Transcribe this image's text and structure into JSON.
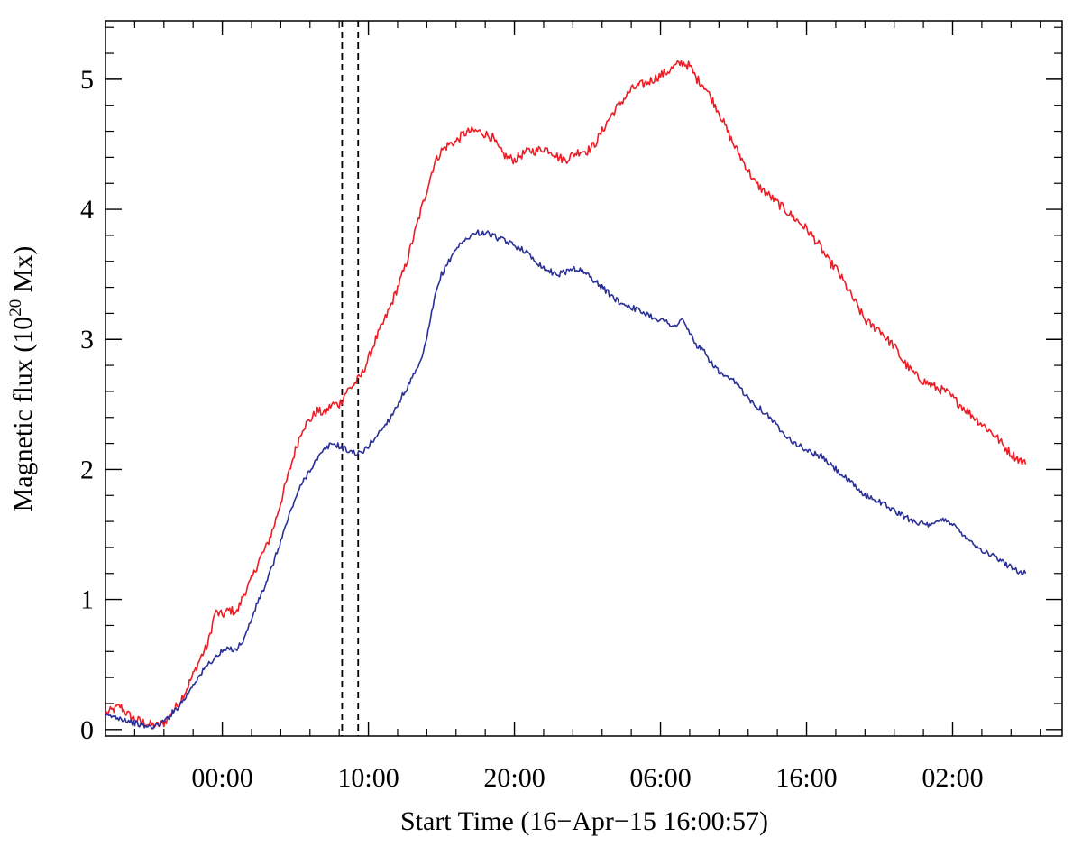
{
  "chart_data": {
    "type": "line",
    "xlabel": "Start Time (16−Apr−15 16:00:57)",
    "ylabel": {
      "prefix": "Magnetic flux (10",
      "exponent": "20",
      "suffix": " Mx)"
    },
    "x_unit": "hours after start time",
    "xlim": [
      0,
      65.5
    ],
    "ylim": [
      -0.05,
      5.45
    ],
    "x_ticks": [
      {
        "x": 8,
        "label": "00:00"
      },
      {
        "x": 18,
        "label": "10:00"
      },
      {
        "x": 28,
        "label": "20:00"
      },
      {
        "x": 38,
        "label": "06:00"
      },
      {
        "x": 48,
        "label": "16:00"
      },
      {
        "x": 58,
        "label": "02:00"
      }
    ],
    "x_minor_step": 2,
    "y_ticks": [
      {
        "y": 0,
        "label": "0"
      },
      {
        "y": 1,
        "label": "1"
      },
      {
        "y": 2,
        "label": "2"
      },
      {
        "y": 3,
        "label": "3"
      },
      {
        "y": 4,
        "label": "4"
      },
      {
        "y": 5,
        "label": "5"
      }
    ],
    "y_minor_step": 0.2,
    "vlines": [
      {
        "x": 16.2,
        "style": "dashed",
        "color": "#000000"
      },
      {
        "x": 17.3,
        "style": "dashed",
        "color": "#000000"
      }
    ],
    "grid": false,
    "series": [
      {
        "color": "#ee1c25",
        "points": [
          [
            0,
            0.12
          ],
          [
            0.5,
            0.15
          ],
          [
            1,
            0.18
          ],
          [
            1.5,
            0.12
          ],
          [
            2,
            0.08
          ],
          [
            2.5,
            0.06
          ],
          [
            3,
            0.04
          ],
          [
            3.5,
            0.03
          ],
          [
            4,
            0.05
          ],
          [
            4.5,
            0.12
          ],
          [
            5,
            0.2
          ],
          [
            5.5,
            0.3
          ],
          [
            6,
            0.42
          ],
          [
            6.5,
            0.55
          ],
          [
            7,
            0.65
          ],
          [
            7.5,
            0.9
          ],
          [
            8,
            0.88
          ],
          [
            8.5,
            0.92
          ],
          [
            9,
            0.9
          ],
          [
            9.5,
            1.05
          ],
          [
            10,
            1.15
          ],
          [
            10.5,
            1.3
          ],
          [
            11,
            1.4
          ],
          [
            11.5,
            1.55
          ],
          [
            12,
            1.75
          ],
          [
            12.5,
            1.95
          ],
          [
            13,
            2.15
          ],
          [
            13.5,
            2.32
          ],
          [
            14,
            2.38
          ],
          [
            14.5,
            2.45
          ],
          [
            15,
            2.43
          ],
          [
            15.5,
            2.5
          ],
          [
            16,
            2.5
          ],
          [
            16.5,
            2.6
          ],
          [
            17,
            2.65
          ],
          [
            17.5,
            2.72
          ],
          [
            18,
            2.85
          ],
          [
            18.5,
            3.0
          ],
          [
            19,
            3.12
          ],
          [
            19.5,
            3.25
          ],
          [
            20,
            3.4
          ],
          [
            20.5,
            3.55
          ],
          [
            21,
            3.75
          ],
          [
            21.5,
            3.95
          ],
          [
            22,
            4.15
          ],
          [
            22.5,
            4.35
          ],
          [
            23,
            4.45
          ],
          [
            23.5,
            4.5
          ],
          [
            24,
            4.52
          ],
          [
            24.5,
            4.58
          ],
          [
            25,
            4.6
          ],
          [
            25.5,
            4.6
          ],
          [
            26,
            4.58
          ],
          [
            26.5,
            4.55
          ],
          [
            27,
            4.45
          ],
          [
            27.5,
            4.4
          ],
          [
            28,
            4.38
          ],
          [
            28.5,
            4.42
          ],
          [
            29,
            4.45
          ],
          [
            29.5,
            4.45
          ],
          [
            30,
            4.47
          ],
          [
            30.5,
            4.45
          ],
          [
            31,
            4.4
          ],
          [
            31.5,
            4.38
          ],
          [
            32,
            4.42
          ],
          [
            32.5,
            4.45
          ],
          [
            33,
            4.45
          ],
          [
            33.5,
            4.5
          ],
          [
            34,
            4.6
          ],
          [
            34.5,
            4.7
          ],
          [
            35,
            4.78
          ],
          [
            35.5,
            4.85
          ],
          [
            36,
            4.92
          ],
          [
            36.5,
            4.95
          ],
          [
            37,
            4.97
          ],
          [
            37.5,
            5.0
          ],
          [
            38,
            5.03
          ],
          [
            38.5,
            5.06
          ],
          [
            39,
            5.1
          ],
          [
            39.5,
            5.13
          ],
          [
            40,
            5.1
          ],
          [
            40.5,
            5.0
          ],
          [
            41,
            4.95
          ],
          [
            41.5,
            4.85
          ],
          [
            42,
            4.75
          ],
          [
            42.5,
            4.62
          ],
          [
            43,
            4.5
          ],
          [
            43.5,
            4.4
          ],
          [
            44,
            4.3
          ],
          [
            44.5,
            4.2
          ],
          [
            45,
            4.15
          ],
          [
            45.5,
            4.1
          ],
          [
            46,
            4.05
          ],
          [
            46.5,
            4.0
          ],
          [
            47,
            3.95
          ],
          [
            47.5,
            3.9
          ],
          [
            48,
            3.85
          ],
          [
            48.5,
            3.78
          ],
          [
            49,
            3.7
          ],
          [
            49.5,
            3.6
          ],
          [
            50,
            3.55
          ],
          [
            50.5,
            3.45
          ],
          [
            51,
            3.35
          ],
          [
            51.5,
            3.25
          ],
          [
            52,
            3.15
          ],
          [
            52.5,
            3.1
          ],
          [
            53,
            3.08
          ],
          [
            53.5,
            3.0
          ],
          [
            54,
            2.95
          ],
          [
            54.5,
            2.85
          ],
          [
            55,
            2.78
          ],
          [
            55.5,
            2.72
          ],
          [
            56,
            2.68
          ],
          [
            56.5,
            2.65
          ],
          [
            57,
            2.62
          ],
          [
            57.5,
            2.6
          ],
          [
            58,
            2.55
          ],
          [
            58.5,
            2.5
          ],
          [
            59,
            2.45
          ],
          [
            59.5,
            2.4
          ],
          [
            60,
            2.35
          ],
          [
            60.5,
            2.3
          ],
          [
            61,
            2.25
          ],
          [
            61.5,
            2.18
          ],
          [
            62,
            2.12
          ],
          [
            62.5,
            2.08
          ],
          [
            63,
            2.04
          ]
        ]
      },
      {
        "color": "#2b3097",
        "points": [
          [
            0,
            0.1
          ],
          [
            0.5,
            0.1
          ],
          [
            1,
            0.09
          ],
          [
            1.5,
            0.07
          ],
          [
            2,
            0.05
          ],
          [
            2.5,
            0.03
          ],
          [
            3,
            0.02
          ],
          [
            3.5,
            0.03
          ],
          [
            4,
            0.06
          ],
          [
            4.5,
            0.12
          ],
          [
            5,
            0.18
          ],
          [
            5.5,
            0.25
          ],
          [
            6,
            0.35
          ],
          [
            6.5,
            0.42
          ],
          [
            7,
            0.5
          ],
          [
            7.5,
            0.55
          ],
          [
            8,
            0.6
          ],
          [
            8.5,
            0.62
          ],
          [
            9,
            0.62
          ],
          [
            9.5,
            0.7
          ],
          [
            10,
            0.85
          ],
          [
            10.5,
            1.0
          ],
          [
            11,
            1.12
          ],
          [
            11.5,
            1.28
          ],
          [
            12,
            1.45
          ],
          [
            12.5,
            1.62
          ],
          [
            13,
            1.78
          ],
          [
            13.5,
            1.9
          ],
          [
            14,
            2.0
          ],
          [
            14.5,
            2.08
          ],
          [
            15,
            2.15
          ],
          [
            15.5,
            2.2
          ],
          [
            16,
            2.18
          ],
          [
            16.5,
            2.15
          ],
          [
            17,
            2.13
          ],
          [
            17.5,
            2.12
          ],
          [
            18,
            2.18
          ],
          [
            18.5,
            2.25
          ],
          [
            19,
            2.32
          ],
          [
            19.5,
            2.4
          ],
          [
            20,
            2.5
          ],
          [
            20.5,
            2.6
          ],
          [
            21,
            2.7
          ],
          [
            21.5,
            2.8
          ],
          [
            22,
            3.0
          ],
          [
            22.5,
            3.3
          ],
          [
            23,
            3.5
          ],
          [
            23.5,
            3.6
          ],
          [
            24,
            3.7
          ],
          [
            24.5,
            3.75
          ],
          [
            25,
            3.8
          ],
          [
            25.5,
            3.82
          ],
          [
            26,
            3.82
          ],
          [
            26.5,
            3.8
          ],
          [
            27,
            3.77
          ],
          [
            27.5,
            3.75
          ],
          [
            28,
            3.72
          ],
          [
            28.5,
            3.7
          ],
          [
            29,
            3.65
          ],
          [
            29.5,
            3.6
          ],
          [
            30,
            3.55
          ],
          [
            30.5,
            3.52
          ],
          [
            31,
            3.5
          ],
          [
            31.5,
            3.52
          ],
          [
            32,
            3.55
          ],
          [
            32.5,
            3.53
          ],
          [
            33,
            3.5
          ],
          [
            33.5,
            3.45
          ],
          [
            34,
            3.4
          ],
          [
            34.5,
            3.35
          ],
          [
            35,
            3.3
          ],
          [
            35.5,
            3.27
          ],
          [
            36,
            3.25
          ],
          [
            36.5,
            3.22
          ],
          [
            37,
            3.2
          ],
          [
            37.5,
            3.17
          ],
          [
            38,
            3.15
          ],
          [
            38.5,
            3.13
          ],
          [
            39,
            3.1
          ],
          [
            39.5,
            3.15
          ],
          [
            40,
            3.05
          ],
          [
            40.5,
            2.95
          ],
          [
            41,
            2.9
          ],
          [
            41.5,
            2.82
          ],
          [
            42,
            2.75
          ],
          [
            42.5,
            2.7
          ],
          [
            43,
            2.68
          ],
          [
            43.5,
            2.62
          ],
          [
            44,
            2.55
          ],
          [
            44.5,
            2.5
          ],
          [
            45,
            2.45
          ],
          [
            45.5,
            2.4
          ],
          [
            46,
            2.33
          ],
          [
            46.5,
            2.28
          ],
          [
            47,
            2.22
          ],
          [
            47.5,
            2.18
          ],
          [
            48,
            2.15
          ],
          [
            48.5,
            2.12
          ],
          [
            49,
            2.1
          ],
          [
            49.5,
            2.05
          ],
          [
            50,
            2.0
          ],
          [
            50.5,
            1.95
          ],
          [
            51,
            1.9
          ],
          [
            51.5,
            1.85
          ],
          [
            52,
            1.8
          ],
          [
            52.5,
            1.78
          ],
          [
            53,
            1.75
          ],
          [
            53.5,
            1.72
          ],
          [
            54,
            1.68
          ],
          [
            54.5,
            1.65
          ],
          [
            55,
            1.62
          ],
          [
            55.5,
            1.6
          ],
          [
            56,
            1.58
          ],
          [
            56.5,
            1.56
          ],
          [
            57,
            1.6
          ],
          [
            57.5,
            1.62
          ],
          [
            58,
            1.58
          ],
          [
            58.5,
            1.52
          ],
          [
            59,
            1.48
          ],
          [
            59.5,
            1.42
          ],
          [
            60,
            1.38
          ],
          [
            60.5,
            1.35
          ],
          [
            61,
            1.32
          ],
          [
            61.5,
            1.28
          ],
          [
            62,
            1.25
          ],
          [
            62.5,
            1.22
          ],
          [
            63,
            1.2
          ]
        ]
      }
    ]
  }
}
